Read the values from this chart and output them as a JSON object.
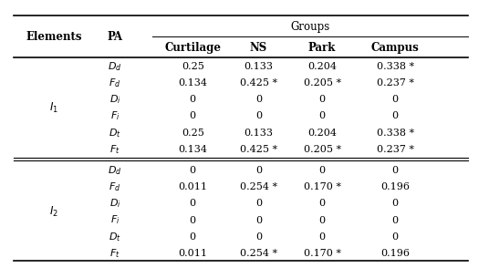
{
  "col_headers_left": [
    "Elements",
    "PA"
  ],
  "group_header": "Groups",
  "col_headers_right": [
    "Curtilage",
    "NS",
    "Park",
    "Campus"
  ],
  "row_group_labels": [
    {
      "label": "I",
      "sub": "1",
      "rows": [
        0,
        1,
        2,
        3,
        4,
        5
      ]
    },
    {
      "label": "I",
      "sub": "2",
      "rows": [
        6,
        7,
        8,
        9,
        10,
        11
      ]
    }
  ],
  "pa_labels_base": [
    "D",
    "F",
    "D",
    "F",
    "D",
    "F",
    "D",
    "F",
    "D",
    "F",
    "D",
    "F"
  ],
  "pa_labels_sub": [
    "d",
    "d",
    "i",
    "i",
    "t",
    "t",
    "d",
    "d",
    "i",
    "i",
    "t",
    "t"
  ],
  "data": [
    [
      "0.25",
      "0.133",
      "0.204",
      "0.338 *"
    ],
    [
      "0.134",
      "0.425 *",
      "0.205 *",
      "0.237 *"
    ],
    [
      "0",
      "0",
      "0",
      "0"
    ],
    [
      "0",
      "0",
      "0",
      "0"
    ],
    [
      "0.25",
      "0.133",
      "0.204",
      "0.338 *"
    ],
    [
      "0.134",
      "0.425 *",
      "0.205 *",
      "0.237 *"
    ],
    [
      "0",
      "0",
      "0",
      "0"
    ],
    [
      "0.011",
      "0.254 *",
      "0.170 *",
      "0.196"
    ],
    [
      "0",
      "0",
      "0",
      "0"
    ],
    [
      "0",
      "0",
      "0",
      "0"
    ],
    [
      "0",
      "0",
      "0",
      "0"
    ],
    [
      "0.011",
      "0.254 *",
      "0.170 *",
      "0.196"
    ]
  ],
  "bg_color": "#ffffff",
  "text_color": "#000000",
  "line_color": "#000000",
  "font_size": 8.0,
  "header_font_size": 8.5
}
